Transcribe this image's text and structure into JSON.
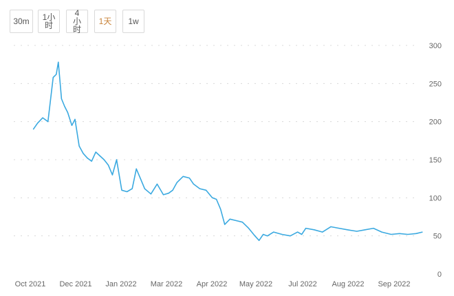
{
  "toolbar": {
    "buttons": [
      {
        "label": "30m",
        "active": false
      },
      {
        "label": "1小时",
        "active": false
      },
      {
        "label": "4小时",
        "active": false
      },
      {
        "label": "1天",
        "active": true
      },
      {
        "label": "1w",
        "active": false
      }
    ],
    "active_color": "#c8833a"
  },
  "chart_data": {
    "type": "line",
    "series_color": "#3aa9e0",
    "grid": "horizontal-dotted",
    "ylim": [
      0,
      300
    ],
    "yticks": [
      0,
      50,
      100,
      150,
      200,
      250,
      300
    ],
    "xtick_labels": [
      "Oct 2021",
      "Dec 2021",
      "Jan 2022",
      "Mar 2022",
      "Apr 2022",
      "May 2022",
      "Jul 2022",
      "Aug 2022",
      "Sep 2022"
    ],
    "x": [
      "2021-10-01",
      "2021-10-05",
      "2021-10-10",
      "2021-10-15",
      "2021-10-20",
      "2021-10-23",
      "2021-10-25",
      "2021-10-28",
      "2021-10-31",
      "2021-11-03",
      "2021-11-07",
      "2021-11-10",
      "2021-11-14",
      "2021-11-18",
      "2021-11-22",
      "2021-11-26",
      "2021-11-30",
      "2021-12-04",
      "2021-12-08",
      "2021-12-12",
      "2021-12-16",
      "2021-12-20",
      "2021-12-25",
      "2021-12-30",
      "2022-01-04",
      "2022-01-08",
      "2022-01-12",
      "2022-01-16",
      "2022-01-22",
      "2022-01-28",
      "2022-02-03",
      "2022-02-08",
      "2022-02-12",
      "2022-02-16",
      "2022-02-22",
      "2022-02-28",
      "2022-03-04",
      "2022-03-10",
      "2022-03-16",
      "2022-03-22",
      "2022-03-26",
      "2022-03-30",
      "2022-04-03",
      "2022-04-08",
      "2022-04-14",
      "2022-04-20",
      "2022-04-26",
      "2022-05-02",
      "2022-05-06",
      "2022-05-08",
      "2022-05-10",
      "2022-05-14",
      "2022-05-20",
      "2022-05-28",
      "2022-06-05",
      "2022-06-12",
      "2022-06-16",
      "2022-06-20",
      "2022-06-28",
      "2022-07-06",
      "2022-07-14",
      "2022-07-22",
      "2022-07-30",
      "2022-08-08",
      "2022-08-16",
      "2022-08-24",
      "2022-09-01",
      "2022-09-10",
      "2022-09-18",
      "2022-09-26",
      "2022-10-04",
      "2022-10-10"
    ],
    "values": [
      190,
      198,
      205,
      200,
      258,
      262,
      278,
      230,
      220,
      212,
      195,
      203,
      168,
      158,
      152,
      148,
      160,
      155,
      150,
      143,
      130,
      150,
      110,
      108,
      112,
      138,
      125,
      112,
      105,
      118,
      104,
      106,
      110,
      120,
      128,
      126,
      118,
      112,
      110,
      100,
      98,
      85,
      65,
      72,
      70,
      68,
      60,
      50,
      44,
      48,
      52,
      50,
      55,
      52,
      50,
      55,
      52,
      60,
      58,
      55,
      62,
      60,
      58,
      56,
      58,
      60,
      55,
      52,
      53,
      52,
      53,
      55
    ]
  }
}
